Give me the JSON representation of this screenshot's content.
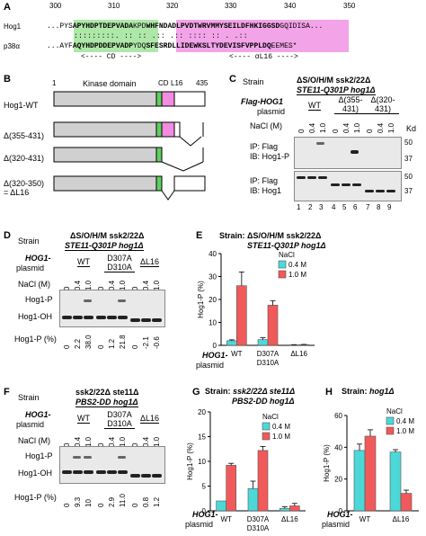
{
  "panelA": {
    "label": "A",
    "ticks": [
      "300",
      "310",
      "320",
      "330",
      "340",
      "350"
    ],
    "hog1_name": "Hog1",
    "hog1_seq_pre": "...PYS",
    "hog1_seq_cd": "APYHDPTDEPVADA",
    "hog1_seq_mid": "KPD",
    "hog1_seq_l16": "WHFNDADLPVDTWRVMMYSEILDFHKIGGSD",
    "hog1_seq_post": "GQIDISA...",
    "match_line": ":::::::::.   ::  :: .:: .:: :::: :: .  .::",
    "p38_name": "p38α",
    "p38_seq_pre": "...AYF",
    "p38_seq_cd": "AQYHDPDDEPVADP",
    "p38_seq_mid": "YDQ",
    "p38_seq_l16": "SFESRDLLIDEWKSLTYDEVISFVPPLDQ",
    "p38_seq_post": "EEMES*",
    "cd_label": "<---- CD ---->",
    "l16_label": "<---- αL16 ---->"
  },
  "panelB": {
    "label": "B",
    "num_start": "1",
    "num_end": "435",
    "kinase_label": "Kinase domain",
    "cd_label": "CD",
    "l16_label": "L16",
    "constructs": [
      "Hog1-WT",
      "Δ(355-431)",
      "Δ(320-431)",
      "Δ(320-350)",
      "= ΔL16"
    ]
  },
  "panelC": {
    "label": "C",
    "strain_label": "Strain",
    "strain_line1": "ΔS/O/H/M ssk2/22Δ",
    "strain_line2": "STE11-Q301P hog1Δ",
    "plasmid_label": "Flag-HOG1",
    "plasmid_label2": "plasmid",
    "groups": [
      "WT",
      "Δ(355-431)",
      "Δ(320-431)"
    ],
    "nacl_label": "NaCl (M)",
    "nacl_values": [
      "0",
      "0.4",
      "1.0",
      "0",
      "0.4",
      "1.0",
      "0",
      "0.4",
      "1.0"
    ],
    "kd_label": "Kd",
    "blot1_line1": "IP: Flag",
    "blot1_line2": "IB: Hog1-P",
    "blot2_line1": "IP: Flag",
    "blot2_line2": "IB: Hog1",
    "markers": [
      "50",
      "37",
      "50",
      "37"
    ],
    "lanes": [
      "1",
      "2",
      "3",
      "4",
      "5",
      "6",
      "7",
      "8",
      "9"
    ]
  },
  "panelD": {
    "label": "D",
    "strain_label": "Strain",
    "strain_line1": "ΔS/O/H/M ssk2/22Δ",
    "strain_line2": "STE11-Q301P hog1Δ",
    "plasmid_label": "HOG1-",
    "plasmid_label2": "plasmid",
    "groups": [
      "WT",
      "D307A D310A",
      "ΔL16"
    ],
    "nacl_label": "NaCl (M)",
    "nacl_values": [
      "0",
      "0.4",
      "1.0",
      "0",
      "0.4",
      "1.0",
      "0",
      "0.4",
      "1.0"
    ],
    "band_p": "Hog1-P",
    "band_oh": "Hog1-OH",
    "pct_label": "Hog1-P (%)",
    "pct_values": [
      "0",
      "2.2",
      "38.0",
      "0",
      "1.2",
      "21.8",
      "0",
      "-2.1",
      "-0.6"
    ]
  },
  "panelE": {
    "label": "E",
    "title_prefix": "Strain:",
    "title_line1": "ΔS/O/H/M ssk2/22Δ",
    "title_line2": "STE11-Q301P hog1Δ",
    "legend_title": "NaCl",
    "plasmid_label": "HOG1-",
    "plasmid_label2": "plasmid",
    "chart_data": {
      "type": "bar",
      "categories": [
        "WT",
        "D307A D310A",
        "ΔL16"
      ],
      "series": [
        {
          "name": "0.4 M",
          "values": [
            2,
            2.5,
            0.2
          ],
          "errors": [
            0.4,
            0.8,
            0.1
          ],
          "color": "#4dd8d8"
        },
        {
          "name": "1.0 M",
          "values": [
            26,
            17.5,
            0.3
          ],
          "errors": [
            6,
            2,
            0.1
          ],
          "color": "#f05a5a"
        }
      ],
      "ylabel": "Hog1-P (%)",
      "ylim": [
        0,
        40
      ],
      "yticks": [
        "0",
        "10",
        "20",
        "30",
        "40"
      ]
    }
  },
  "panelF": {
    "label": "F",
    "strain_label": "Strain",
    "strain_line1": "ssk2/22Δ ste11Δ",
    "strain_line2": "PBS2-DD hog1Δ",
    "plasmid_label": "HOG1-",
    "plasmid_label2": "plasmid",
    "groups": [
      "WT",
      "D307A D310A",
      "ΔL16"
    ],
    "nacl_label": "NaCl (M)",
    "nacl_values": [
      "0",
      "0.4",
      "1.0",
      "0",
      "0.4",
      "1.0",
      "0",
      "0.4",
      "1.0"
    ],
    "band_p": "Hog1-P",
    "band_oh": "Hog1-OH",
    "pct_label": "Hog1-P (%)",
    "pct_values": [
      "0",
      "9.3",
      "10",
      "0",
      "2.9",
      "11.0",
      "0",
      "0.8",
      "1.2"
    ]
  },
  "panelG": {
    "label": "G",
    "title_prefix": "Strain:",
    "title_line1": "ssk2/22Δ ste11Δ",
    "title_line2": "PBS2-DD hog1Δ",
    "legend_title": "NaCl",
    "plasmid_label": "HOG1-",
    "plasmid_label2": "plasmid",
    "chart_data": {
      "type": "bar",
      "categories": [
        "WT",
        "D307A D310A",
        "ΔL16"
      ],
      "series": [
        {
          "name": "0.4 M",
          "values": [
            2,
            4.5,
            0.5
          ],
          "errors": [
            0,
            1.5,
            0.3
          ],
          "color": "#4dd8d8"
        },
        {
          "name": "1.0 M",
          "values": [
            9.2,
            12.2,
            1
          ],
          "errors": [
            0.4,
            0.8,
            0.5
          ],
          "color": "#f05a5a"
        }
      ],
      "ylabel": "Hog1-P (%)",
      "ylim": [
        0,
        20
      ],
      "yticks": [
        "0",
        "5",
        "10",
        "15",
        "20"
      ]
    }
  },
  "panelH": {
    "label": "H",
    "title_prefix": "Strain:",
    "title_line1": "hog1Δ",
    "legend_title": "NaCl",
    "plasmid_label": "HOG1-",
    "plasmid_label2": "plasmid",
    "chart_data": {
      "type": "bar",
      "categories": [
        "WT",
        "ΔL16"
      ],
      "series": [
        {
          "name": "0.4 M",
          "values": [
            38,
            37
          ],
          "errors": [
            4,
            1.5
          ],
          "color": "#4dd8d8"
        },
        {
          "name": "1.0 M",
          "values": [
            47,
            11
          ],
          "errors": [
            4,
            2
          ],
          "color": "#f05a5a"
        }
      ],
      "ylabel": "Hog1-P (%)",
      "ylim": [
        0,
        60
      ],
      "yticks": [
        "0",
        "20",
        "40",
        "60"
      ]
    }
  }
}
